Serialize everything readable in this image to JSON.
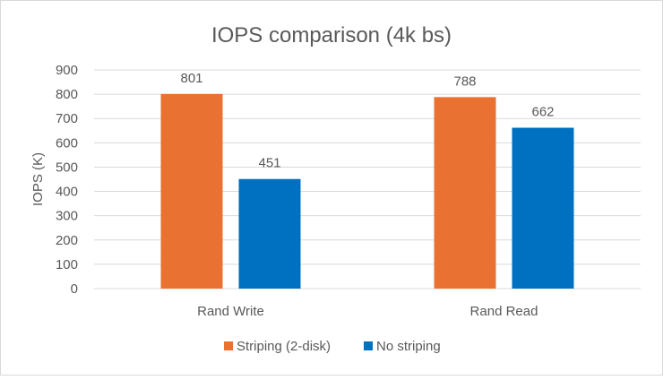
{
  "chart_data": {
    "type": "bar",
    "title": "IOPS comparison (4k bs)",
    "xlabel": "",
    "ylabel": "IOPS (K)",
    "categories": [
      "Rand Write",
      "Rand Read"
    ],
    "series": [
      {
        "name": "Striping (2-disk)",
        "values": [
          801,
          788
        ],
        "color": "#E97132"
      },
      {
        "name": "No striping",
        "values": [
          451,
          662
        ],
        "color": "#0070C0"
      }
    ],
    "ylim": [
      0,
      900
    ],
    "yticks": [
      0,
      100,
      200,
      300,
      400,
      500,
      600,
      700,
      800,
      900
    ],
    "grid": true,
    "data_labels": true,
    "legend": "bottom"
  }
}
